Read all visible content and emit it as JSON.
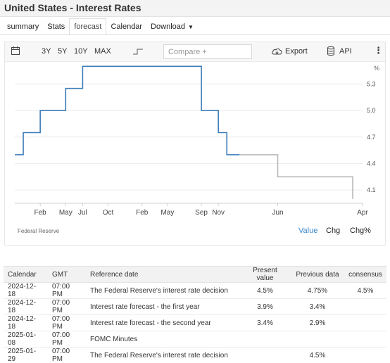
{
  "title": "United States - Interest Rates",
  "tabs": [
    {
      "label": "summary"
    },
    {
      "label": "Stats"
    },
    {
      "label": "forecast"
    },
    {
      "label": "Calendar"
    },
    {
      "label": "Download"
    }
  ],
  "active_tab": "forecast",
  "toolbar": {
    "ranges": [
      "3Y",
      "5Y",
      "10Y",
      "MAX"
    ],
    "compare_placeholder": "Compare +",
    "export_label": "Export",
    "api_label": "API"
  },
  "chart_data": {
    "type": "line",
    "unit_label": "%",
    "x_ticks": [
      "Feb",
      "May",
      "Jul",
      "Oct",
      "Feb",
      "May",
      "Sep",
      "Nov",
      "Jun",
      "Apr"
    ],
    "y_ticks": [
      5.3,
      5.0,
      4.7,
      4.4,
      4.1
    ],
    "ylim": [
      3.95,
      5.55
    ],
    "series": [
      {
        "kind": "actual",
        "color": "#3d7cb8",
        "points": [
          {
            "x": "2022-11",
            "y": 4.5
          },
          {
            "x": "2022-12",
            "y": 4.75
          },
          {
            "x": "2023-02",
            "y": 5.0
          },
          {
            "x": "2023-05",
            "y": 5.25
          },
          {
            "x": "2023-07",
            "y": 5.5
          },
          {
            "x": "2024-09",
            "y": 5.0
          },
          {
            "x": "2024-11",
            "y": 4.75
          },
          {
            "x": "2024-12",
            "y": 4.5
          }
        ]
      },
      {
        "kind": "forecast",
        "color": "#b8b8b8",
        "points": [
          {
            "x": "2024-12",
            "y": 4.5
          },
          {
            "x": "2025-06",
            "y": 4.25
          },
          {
            "x": "2026-04",
            "y": 4.0
          }
        ]
      }
    ]
  },
  "chart_footer": {
    "source": "Federal Reserve",
    "modes": [
      "Value",
      "Chg",
      "Chg%"
    ],
    "active_mode": "Value"
  },
  "calendar_table": {
    "columns": [
      "Calendar",
      "GMT",
      "Reference date",
      "Present value",
      "Previous data",
      "consensus"
    ],
    "rows": [
      [
        "2024-12-18",
        "07:00 PM",
        "The Federal Reserve's interest rate decision",
        "4.5%",
        "4.75%",
        "4.5%"
      ],
      [
        "2024-12-18",
        "07:00 PM",
        "Interest rate forecast - the first year",
        "3.9%",
        "3.4%",
        ""
      ],
      [
        "2024-12-18",
        "07:00 PM",
        "Interest rate forecast - the second year",
        "3.4%",
        "2.9%",
        ""
      ],
      [
        "2025-01-08",
        "07:00 PM",
        "FOMC Minutes",
        "",
        "",
        ""
      ],
      [
        "2025-01-29",
        "07:00 PM",
        "The Federal Reserve's interest rate decision",
        "",
        "4.5%",
        ""
      ]
    ]
  }
}
